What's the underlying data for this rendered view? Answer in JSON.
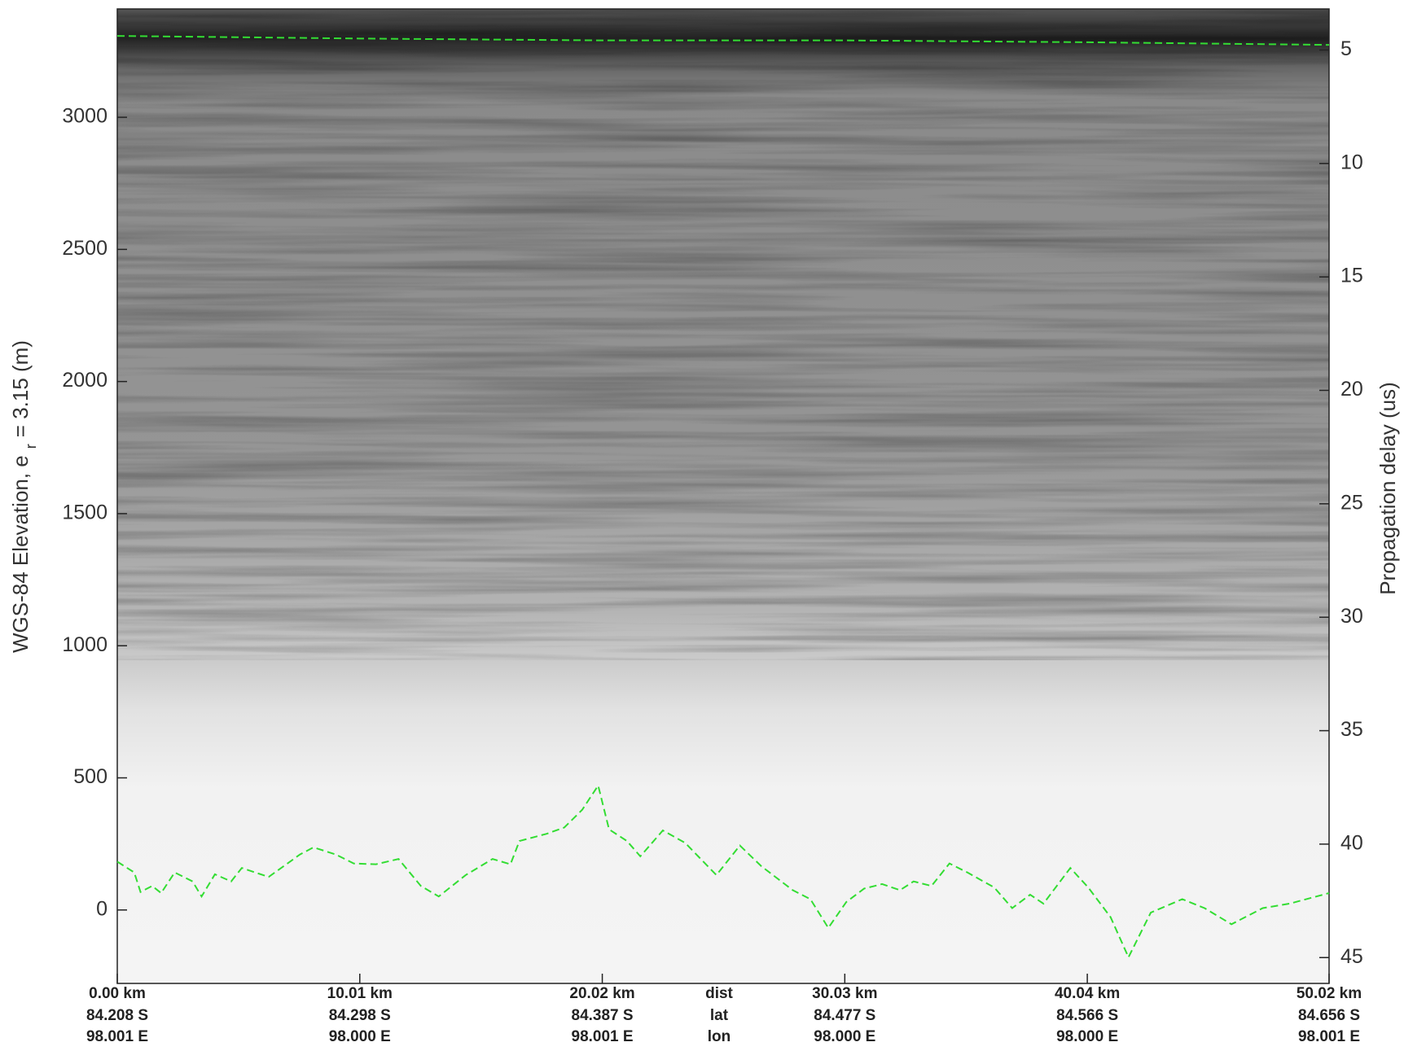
{
  "chart_data": {
    "type": "line",
    "ylabel": "WGS-84 Elevation, e",
    "ylabel_sub": "r",
    "ylabel_tail": "= 3.15 (m)",
    "y2label": "Propagation delay (us)",
    "xlim": [
      0,
      50.02
    ],
    "xticks": [
      {
        "value": 0,
        "label": "0.00 km"
      },
      {
        "value": 10.01,
        "label": "10.01 km"
      },
      {
        "value": 20.02,
        "label": "20.02 km"
      },
      {
        "value": 30.03,
        "label": "30.03 km"
      },
      {
        "value": 40.04,
        "label": "40.04 km"
      },
      {
        "value": 50.02,
        "label": "50.02 km"
      }
    ],
    "xtick_lat": [
      "84.208 S",
      "84.298 S",
      "84.387 S",
      "84.477 S",
      "84.566 S",
      "84.656 S"
    ],
    "xtick_lon": [
      "98.001 E",
      "98.000 E",
      "98.001 E",
      "98.000 E",
      "98.000 E",
      "98.001 E"
    ],
    "xtick_row_labels": [
      "dist",
      "lat",
      "lon"
    ],
    "ylim": [
      -278,
      3410
    ],
    "yticks": [
      0,
      500,
      1000,
      1500,
      2000,
      2500,
      3000
    ],
    "y2lim": [
      46.14,
      3.19
    ],
    "y2ticks": [
      5,
      10,
      15,
      20,
      25,
      30,
      35,
      40,
      45
    ],
    "series": [
      {
        "color": "#33dd33",
        "x": [
          0,
          10.01,
          20.02,
          30.03,
          40.04,
          50.02
        ],
        "values": [
          3308,
          3298,
          3291,
          3291,
          3284,
          3274
        ]
      },
      {
        "color": "#33dd33",
        "x": [
          0,
          0.7,
          0.96,
          1.44,
          1.81,
          2.37,
          3.11,
          3.48,
          4.03,
          4.7,
          5.14,
          6.25,
          7.54,
          8.1,
          9.02,
          9.76,
          10.68,
          11.61,
          12.53,
          13.27,
          14.38,
          15.49,
          16.23,
          16.6,
          17.71,
          18.45,
          19.19,
          19.85,
          20.3,
          21.04,
          21.59,
          22.52,
          23.44,
          24.73,
          25.7,
          26.58,
          27.88,
          28.61,
          29.35,
          30.09,
          30.83,
          31.57,
          32.31,
          32.87,
          33.61,
          34.35,
          35.09,
          36.2,
          36.94,
          37.68,
          38.23,
          39.34,
          40.08,
          41.0,
          41.74,
          42.66,
          43.96,
          44.88,
          45.99,
          47.28,
          48.39,
          50.02
        ],
        "values": [
          183,
          142,
          68,
          91,
          64,
          142,
          108,
          51,
          135,
          108,
          159,
          125,
          210,
          237,
          210,
          176,
          173,
          193,
          91,
          51,
          132,
          193,
          173,
          261,
          288,
          312,
          379,
          471,
          305,
          261,
          203,
          301,
          254,
          132,
          244,
          166,
          75,
          41,
          -68,
          30,
          81,
          98,
          75,
          108,
          91,
          176,
          142,
          85,
          7,
          58,
          24,
          159,
          85,
          -27,
          -179,
          -10,
          41,
          7,
          -54,
          7,
          24,
          64
        ]
      }
    ]
  }
}
